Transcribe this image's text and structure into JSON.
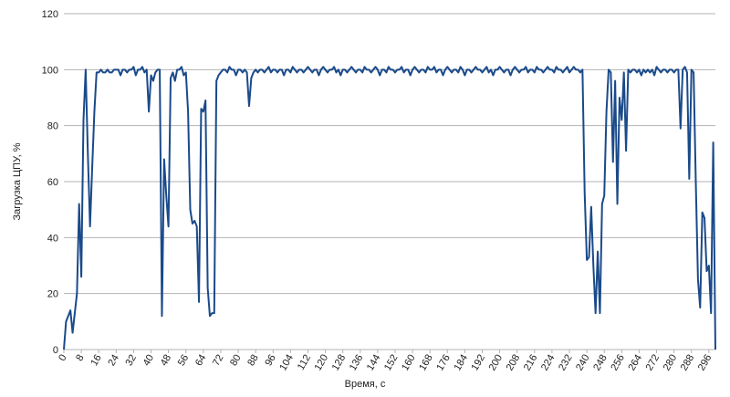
{
  "chart_data": {
    "type": "line",
    "x_label": "Время, с",
    "y_label": "Загрузка ЦПУ, %",
    "x": [
      0,
      1,
      2,
      3,
      4,
      5,
      6,
      7,
      8,
      9,
      10,
      11,
      12,
      13,
      14,
      15,
      16,
      17,
      18,
      19,
      20,
      21,
      22,
      23,
      24,
      25,
      26,
      27,
      28,
      29,
      30,
      31,
      32,
      33,
      34,
      35,
      36,
      37,
      38,
      39,
      40,
      41,
      42,
      43,
      44,
      45,
      46,
      47,
      48,
      49,
      50,
      51,
      52,
      53,
      54,
      55,
      56,
      57,
      58,
      59,
      60,
      61,
      62,
      63,
      64,
      65,
      66,
      67,
      68,
      69,
      70,
      71,
      72,
      73,
      74,
      75,
      76,
      77,
      78,
      79,
      80,
      81,
      82,
      83,
      84,
      85,
      86,
      87,
      88,
      89,
      90,
      91,
      92,
      93,
      94,
      95,
      96,
      97,
      98,
      99,
      100,
      101,
      102,
      103,
      104,
      105,
      106,
      107,
      108,
      109,
      110,
      111,
      112,
      113,
      114,
      115,
      116,
      117,
      118,
      119,
      120,
      121,
      122,
      123,
      124,
      125,
      126,
      127,
      128,
      129,
      130,
      131,
      132,
      133,
      134,
      135,
      136,
      137,
      138,
      139,
      140,
      141,
      142,
      143,
      144,
      145,
      146,
      147,
      148,
      149,
      150,
      151,
      152,
      153,
      154,
      155,
      156,
      157,
      158,
      159,
      160,
      161,
      162,
      163,
      164,
      165,
      166,
      167,
      168,
      169,
      170,
      171,
      172,
      173,
      174,
      175,
      176,
      177,
      178,
      179,
      180,
      181,
      182,
      183,
      184,
      185,
      186,
      187,
      188,
      189,
      190,
      191,
      192,
      193,
      194,
      195,
      196,
      197,
      198,
      199,
      200,
      201,
      202,
      203,
      204,
      205,
      206,
      207,
      208,
      209,
      210,
      211,
      212,
      213,
      214,
      215,
      216,
      217,
      218,
      219,
      220,
      221,
      222,
      223,
      224,
      225,
      226,
      227,
      228,
      229,
      230,
      231,
      232,
      233,
      234,
      235,
      236,
      237,
      238,
      239,
      240,
      241,
      242,
      243,
      244,
      245,
      246,
      247,
      248,
      249,
      250,
      251,
      252,
      253,
      254,
      255,
      256,
      257,
      258,
      259,
      260,
      261,
      262,
      263,
      264,
      265,
      266,
      267,
      268,
      269,
      270,
      271,
      272,
      273,
      274,
      275,
      276,
      277,
      278,
      279,
      280,
      281,
      282,
      283,
      284,
      285,
      286,
      287,
      288,
      289,
      290,
      291,
      292,
      293,
      294,
      295,
      296,
      297,
      298,
      299
    ],
    "values": [
      0,
      10,
      12,
      14,
      6,
      13,
      20,
      52,
      26,
      82,
      100,
      70,
      44,
      65,
      85,
      99,
      99,
      100,
      99,
      99,
      100,
      99,
      99,
      100,
      100,
      100,
      98,
      100,
      100,
      99,
      100,
      100,
      101,
      98,
      100,
      100,
      101,
      99,
      100,
      85,
      98,
      96,
      99,
      100,
      100,
      12,
      68,
      55,
      44,
      97,
      99,
      96,
      100,
      100,
      101,
      98,
      99,
      85,
      50,
      45,
      46,
      44,
      17,
      86,
      85,
      89,
      22,
      12,
      13,
      13,
      96,
      98,
      99,
      100,
      100,
      99,
      101,
      100,
      100,
      98,
      100,
      100,
      99,
      100,
      99,
      87,
      97,
      99,
      100,
      99,
      100,
      100,
      99,
      100,
      101,
      99,
      100,
      100,
      99,
      100,
      100,
      98,
      100,
      100,
      99,
      101,
      100,
      99,
      100,
      100,
      99,
      100,
      101,
      100,
      99,
      100,
      100,
      98,
      100,
      101,
      100,
      99,
      100,
      100,
      101,
      99,
      100,
      98,
      100,
      100,
      99,
      100,
      101,
      100,
      99,
      100,
      100,
      99,
      101,
      100,
      100,
      99,
      100,
      101,
      100,
      98,
      100,
      100,
      99,
      101,
      100,
      100,
      99,
      100,
      100,
      101,
      99,
      100,
      100,
      98,
      100,
      101,
      100,
      99,
      100,
      100,
      99,
      101,
      100,
      100,
      101,
      99,
      100,
      100,
      98,
      100,
      101,
      100,
      99,
      100,
      100,
      99,
      101,
      100,
      98,
      100,
      100,
      99,
      100,
      101,
      100,
      100,
      99,
      100,
      101,
      99,
      100,
      98,
      100,
      100,
      101,
      100,
      99,
      100,
      100,
      98,
      100,
      101,
      100,
      99,
      100,
      100,
      101,
      99,
      100,
      100,
      99,
      101,
      100,
      100,
      99,
      100,
      101,
      100,
      100,
      99,
      101,
      100,
      100,
      99,
      100,
      101,
      99,
      100,
      101,
      100,
      100,
      99,
      100,
      56,
      32,
      33,
      51,
      30,
      13,
      35,
      13,
      52,
      55,
      85,
      100,
      99,
      67,
      96,
      52,
      90,
      82,
      99,
      71,
      100,
      99,
      100,
      100,
      99,
      100,
      98,
      100,
      99,
      100,
      99,
      100,
      98,
      101,
      100,
      99,
      100,
      100,
      99,
      100,
      100,
      99,
      100,
      100,
      79,
      100,
      101,
      99,
      61,
      100,
      99,
      60,
      25,
      15,
      49,
      47,
      28,
      30,
      13,
      74,
      0
    ],
    "color": "#1a4a8a",
    "xlim": [
      0,
      299
    ],
    "xticks": [
      0,
      8,
      16,
      24,
      32,
      40,
      48,
      56,
      64,
      72,
      80,
      88,
      96,
      104,
      112,
      120,
      128,
      136,
      144,
      152,
      160,
      168,
      176,
      184,
      192,
      200,
      208,
      216,
      224,
      232,
      240,
      248,
      256,
      264,
      272,
      280,
      288,
      296
    ],
    "ylim": [
      0,
      120
    ],
    "yticks": [
      0,
      20,
      40,
      60,
      80,
      100,
      120
    ],
    "grid": true
  }
}
